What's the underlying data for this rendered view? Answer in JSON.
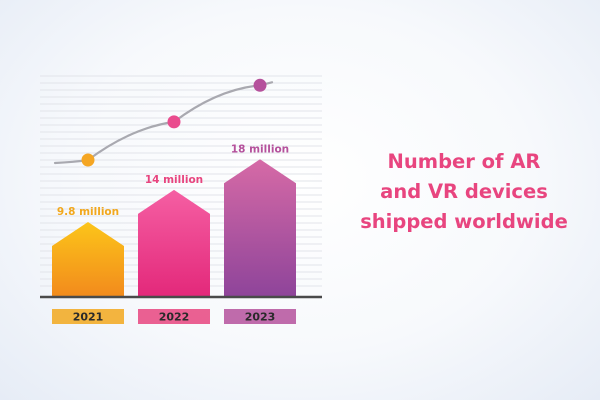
{
  "colors": {
    "background": "#f4f7fb",
    "grid": "#e2e4ea",
    "baseline": "#4a4a4a",
    "title": "#e8457f",
    "trend_line": "#a9a9b0",
    "bar_2021": [
      "#fcc51a",
      "#f28a1c"
    ],
    "bar_2022": [
      "#f55fa3",
      "#e3287a"
    ],
    "bar_2023": [
      "#d66aa6",
      "#8e449a"
    ],
    "dot_2021": "#f5a623",
    "dot_2022": "#ea4c8e",
    "dot_2023": "#b5519c"
  },
  "chart_data": {
    "type": "bar",
    "title": "Number of AR and VR devices shipped worldwide",
    "title_lines": [
      "Number of AR",
      "and VR devices",
      "shipped worldwide"
    ],
    "categories": [
      "2021",
      "2022",
      "2023"
    ],
    "values": [
      9.8,
      14,
      18
    ],
    "unit": "million",
    "value_labels": [
      "9.8 million",
      "14 million",
      "18 million"
    ],
    "ylim": [
      0,
      20
    ],
    "grid": true,
    "trend_line": true,
    "legend": "none"
  }
}
